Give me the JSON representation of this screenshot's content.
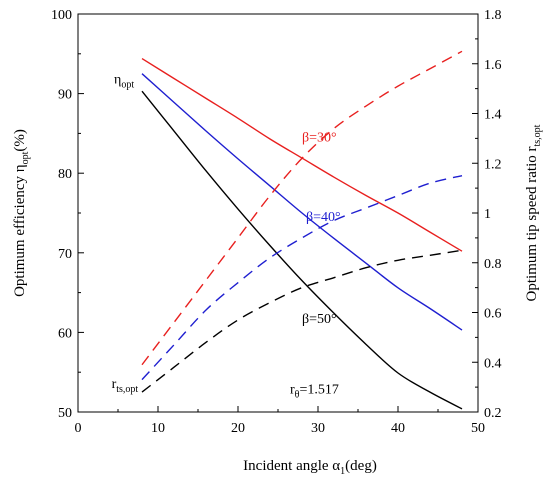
{
  "chart_data": {
    "type": "line",
    "xlabel": {
      "prefix": "Incident angle α",
      "sub": "1",
      "suffix": "(deg)"
    },
    "ylabel_left": {
      "prefix": "Optimum efficiency η",
      "sub": "opt",
      "suffix": "(%)"
    },
    "ylabel_right": {
      "prefix": "Optimum tip speed ratio r",
      "sub": "ts,opt",
      "suffix": ""
    },
    "xlim": [
      0,
      50
    ],
    "ylim_left": [
      50,
      100
    ],
    "ylim_right": [
      0.2,
      1.8
    ],
    "x_ticks": [
      "0",
      "10",
      "20",
      "30",
      "40",
      "50"
    ],
    "y_left_ticks": [
      "50",
      "60",
      "70",
      "80",
      "90",
      "100"
    ],
    "y_right_ticks": [
      "0.2",
      "0.4",
      "0.6",
      "0.8",
      "1",
      "1.2",
      "1.4",
      "1.6",
      "1.8"
    ],
    "grid": false,
    "colors": {
      "beta30": "#e8201f",
      "beta40": "#1f1fd0",
      "beta50": "#000000"
    },
    "series": [
      {
        "name": "β=30°",
        "quantity": "efficiency",
        "axis": "left",
        "style": "solid",
        "color_key": "beta30",
        "x": [
          8,
          12,
          16,
          20,
          24,
          28,
          32,
          36,
          40,
          44,
          48
        ],
        "y": [
          94.4,
          91.9,
          89.4,
          86.9,
          84.3,
          81.9,
          79.5,
          77.2,
          75.0,
          72.6,
          70.2
        ]
      },
      {
        "name": "β=40°",
        "quantity": "efficiency",
        "axis": "left",
        "style": "solid",
        "color_key": "beta40",
        "x": [
          8,
          12,
          16,
          20,
          24,
          28,
          32,
          36,
          40,
          44,
          48
        ],
        "y": [
          92.5,
          88.9,
          85.3,
          81.8,
          78.4,
          75.0,
          71.8,
          68.7,
          65.6,
          63.0,
          60.3
        ]
      },
      {
        "name": "β=50°",
        "quantity": "efficiency",
        "axis": "left",
        "style": "solid",
        "color_key": "beta50",
        "x": [
          8,
          12,
          16,
          20,
          24,
          28,
          32,
          36,
          40,
          44,
          48
        ],
        "y": [
          90.3,
          85.3,
          80.3,
          75.5,
          70.9,
          66.5,
          62.4,
          58.5,
          54.9,
          52.5,
          50.4
        ]
      },
      {
        "name": "β=30°",
        "quantity": "tip_speed_ratio",
        "axis": "right",
        "style": "dashed",
        "color_key": "beta30",
        "x": [
          8,
          12,
          16,
          20,
          24,
          28,
          32,
          36,
          40,
          44,
          48
        ],
        "y": [
          0.39,
          0.56,
          0.73,
          0.9,
          1.07,
          1.22,
          1.34,
          1.43,
          1.51,
          1.58,
          1.65
        ]
      },
      {
        "name": "β=40°",
        "quantity": "tip_speed_ratio",
        "axis": "right",
        "style": "dashed",
        "color_key": "beta40",
        "x": [
          8,
          12,
          16,
          20,
          24,
          28,
          32,
          36,
          40,
          44,
          48
        ],
        "y": [
          0.33,
          0.47,
          0.61,
          0.72,
          0.82,
          0.9,
          0.97,
          1.02,
          1.07,
          1.12,
          1.15
        ]
      },
      {
        "name": "β=50°",
        "quantity": "tip_speed_ratio",
        "axis": "right",
        "style": "dashed",
        "color_key": "beta50",
        "x": [
          8,
          12,
          16,
          20,
          24,
          28,
          32,
          36,
          40,
          44,
          48
        ],
        "y": [
          0.28,
          0.38,
          0.48,
          0.57,
          0.64,
          0.7,
          0.74,
          0.78,
          0.81,
          0.83,
          0.85
        ]
      }
    ],
    "annotations": [
      {
        "id": "eta-opt",
        "prefix": "η",
        "sub": "opt",
        "x": 4.5,
        "y": 91.3,
        "axis": "left"
      },
      {
        "id": "r-ts-opt",
        "prefix": "r",
        "sub": "ts,opt",
        "x": 4.2,
        "y": 53.0,
        "axis": "left"
      },
      {
        "id": "beta30",
        "prefix": "β=30°",
        "sub": "",
        "x": 28.0,
        "y": 84.0,
        "axis": "left",
        "color_key": "beta30"
      },
      {
        "id": "beta40",
        "prefix": "β=40°",
        "sub": "",
        "x": 28.5,
        "y": 74.0,
        "axis": "left",
        "color_key": "beta40"
      },
      {
        "id": "beta50",
        "prefix": "β=50°",
        "sub": "",
        "x": 28.0,
        "y": 61.2,
        "axis": "left",
        "color_key": "beta50"
      },
      {
        "id": "r-theta",
        "prefix": "r",
        "sub": "θ",
        "suffix": "=1.517",
        "x": 26.5,
        "y": 52.3,
        "axis": "left"
      }
    ]
  }
}
